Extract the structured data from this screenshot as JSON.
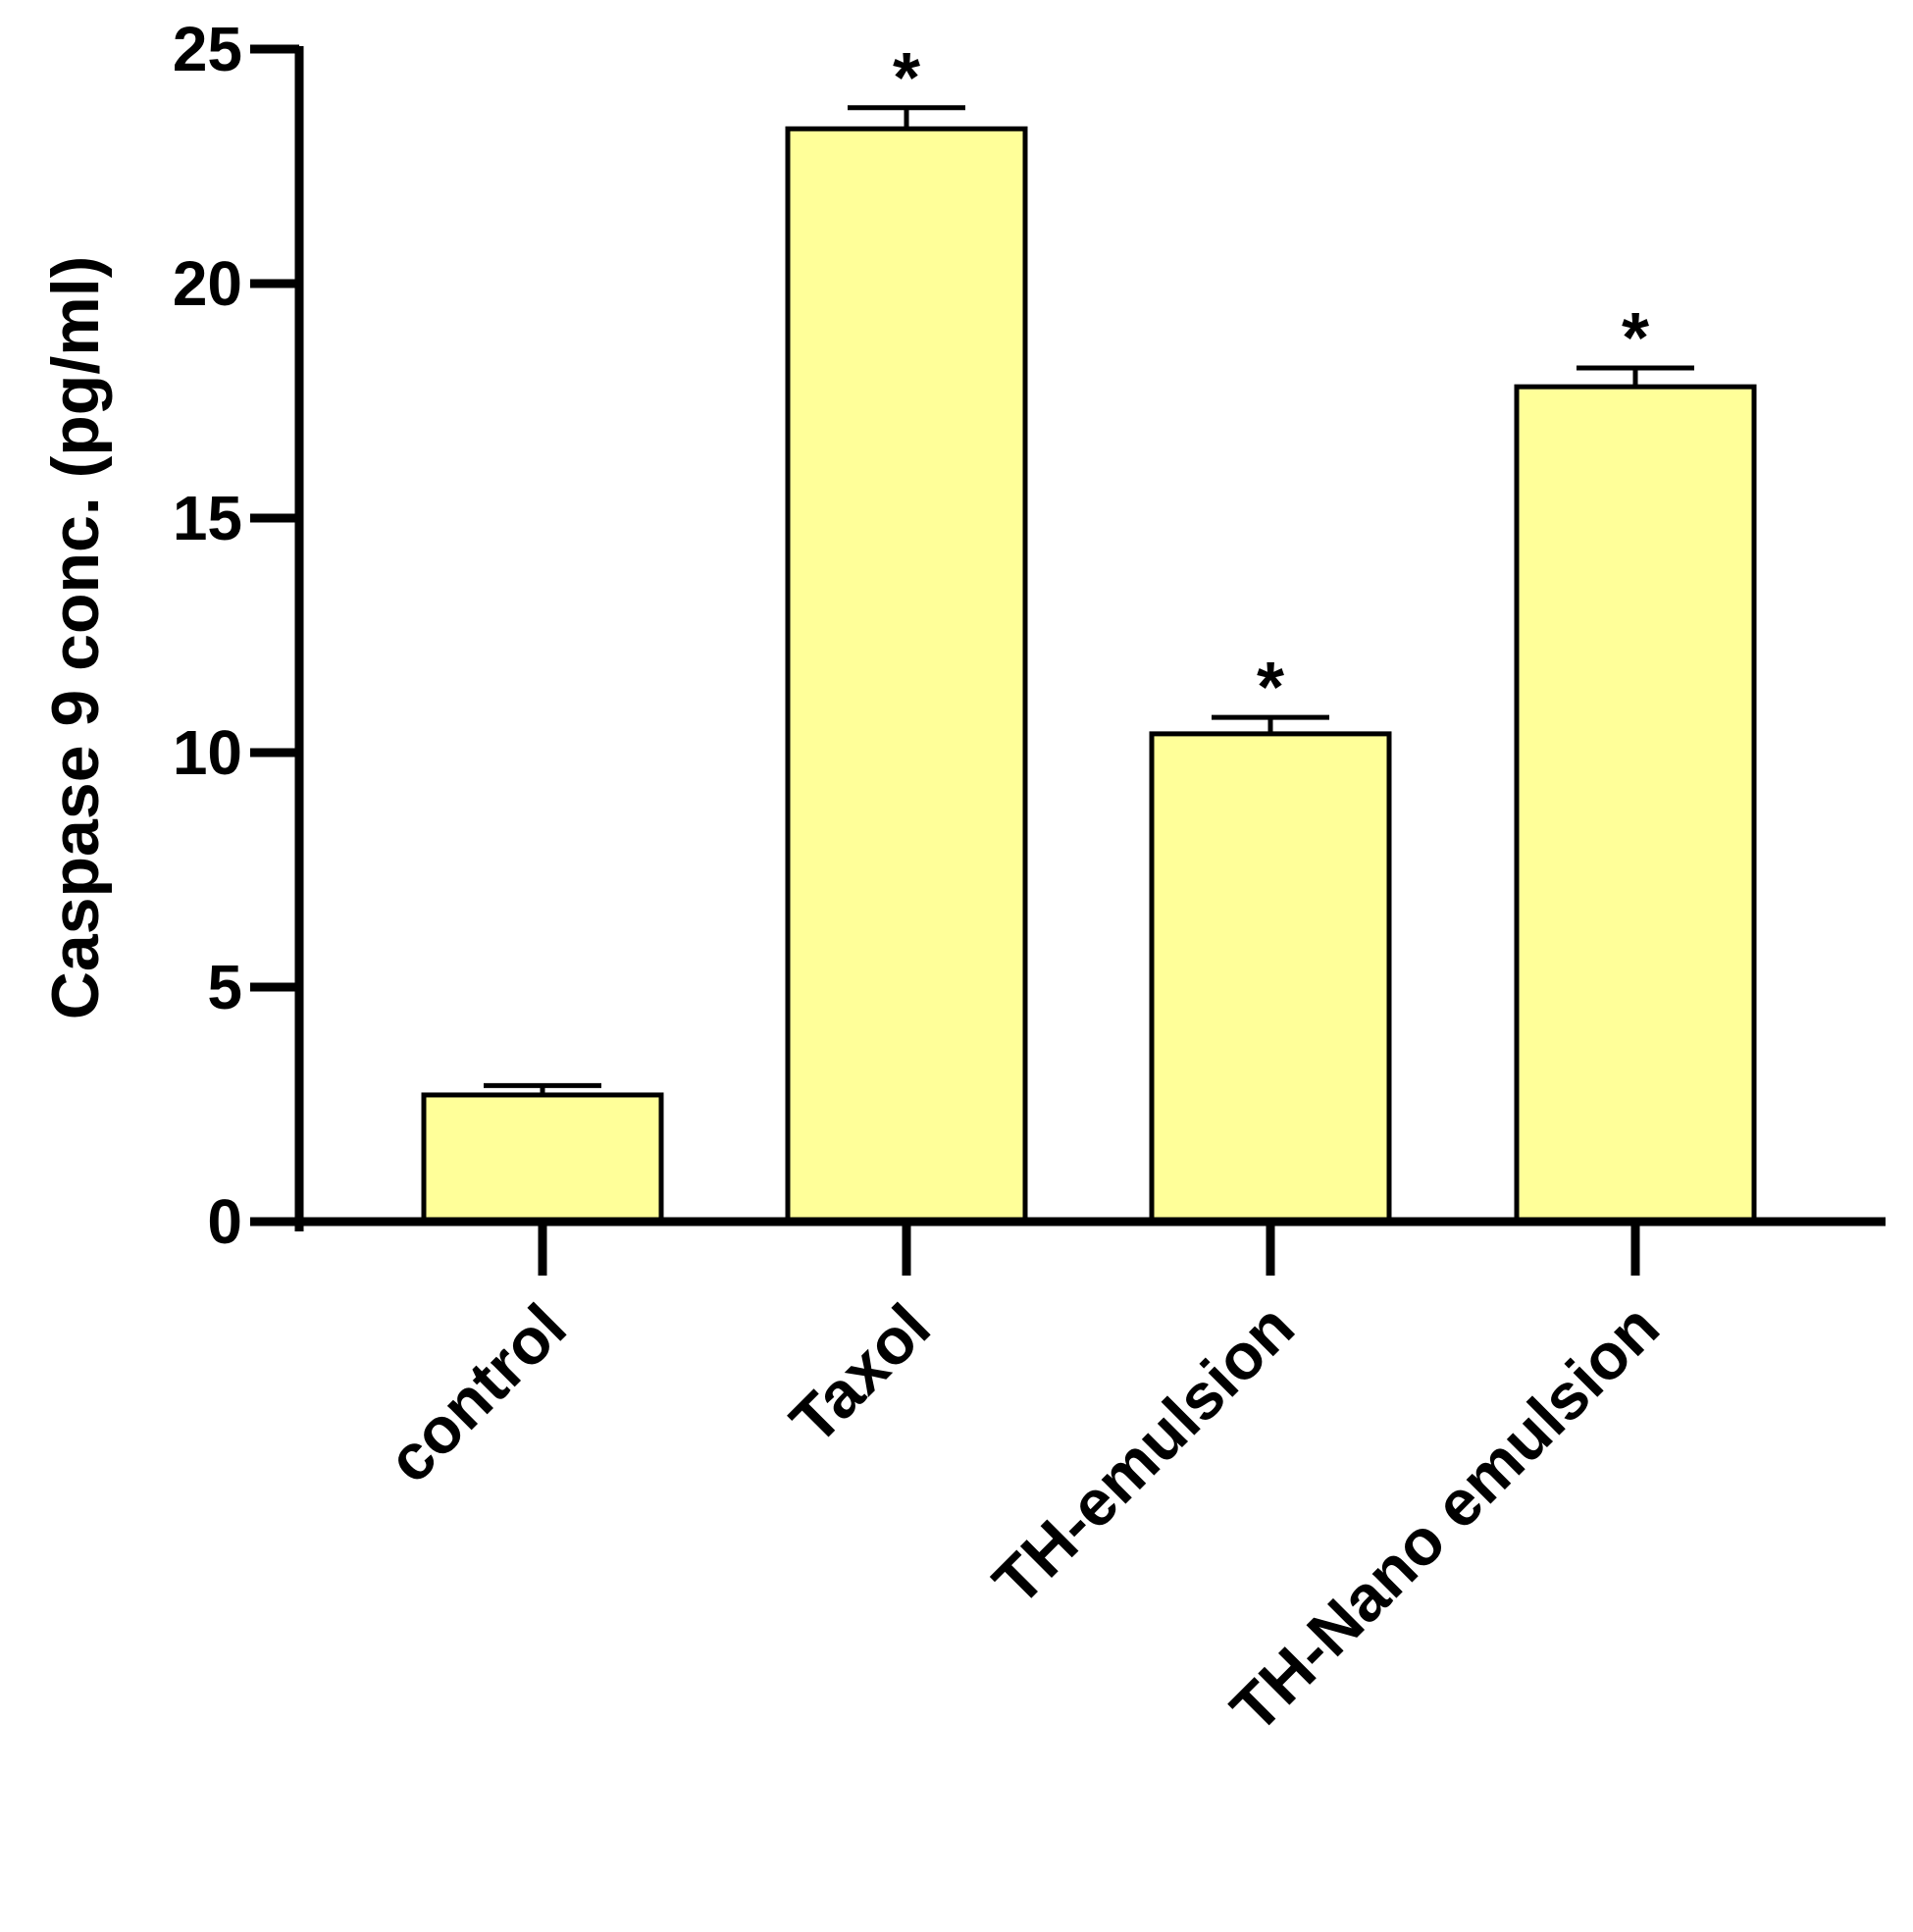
{
  "chart_data": {
    "type": "bar",
    "title": "",
    "xlabel": "",
    "ylabel": "Caspase 9 conc. (pg/ml)",
    "ylim": [
      0,
      25
    ],
    "yticks": [
      0,
      5,
      10,
      15,
      20,
      25
    ],
    "ytick_labels": [
      "0",
      "5",
      "10",
      "15",
      "20",
      "25"
    ],
    "categories": [
      "control",
      "Taxol",
      "TH-emulsion",
      "TH-Nano emulsion"
    ],
    "values": [
      2.7,
      23.3,
      10.4,
      17.8
    ],
    "errors": [
      0.2,
      0.45,
      0.35,
      0.4
    ],
    "annotations": [
      "",
      "*",
      "*",
      "*"
    ],
    "bar_color": "#ffff99",
    "edge_color": "#000000",
    "grid": false,
    "legend": "none"
  }
}
